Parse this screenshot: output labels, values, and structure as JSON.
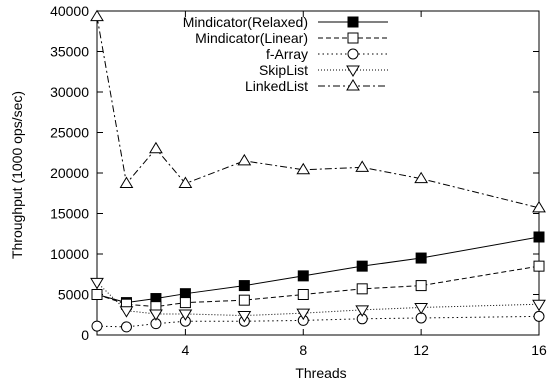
{
  "chart_data": {
    "type": "line",
    "title": "",
    "xlabel": "Threads",
    "ylabel": "Throughput (1000 ops/sec)",
    "xlim": [
      1,
      16
    ],
    "ylim": [
      0,
      40000
    ],
    "xticks": [
      4,
      8,
      12,
      16
    ],
    "yticks": [
      0,
      5000,
      10000,
      15000,
      20000,
      25000,
      30000,
      35000,
      40000
    ],
    "grid": false,
    "legend_position": "top-right",
    "series": [
      {
        "name": "Mindicator(Relaxed)",
        "marker": "filled-square",
        "line_style": "solid",
        "color": "#000000",
        "x": [
          1,
          2,
          3,
          4,
          6,
          8,
          10,
          12,
          16
        ],
        "y": [
          5000,
          4000,
          4500,
          5100,
          6100,
          7300,
          8500,
          9500,
          12100
        ]
      },
      {
        "name": "Mindicator(Linear)",
        "marker": "open-square",
        "line_style": "dashed",
        "color": "#000000",
        "x": [
          1,
          2,
          3,
          4,
          6,
          8,
          10,
          12,
          16
        ],
        "y": [
          5000,
          3800,
          3500,
          4000,
          4300,
          5000,
          5700,
          6100,
          8500
        ]
      },
      {
        "name": "f-Array",
        "marker": "open-circle",
        "line_style": "dotted",
        "color": "#000000",
        "x": [
          1,
          2,
          3,
          4,
          6,
          8,
          10,
          12,
          16
        ],
        "y": [
          1100,
          1000,
          1400,
          1700,
          1700,
          1800,
          2000,
          2100,
          2300
        ]
      },
      {
        "name": "SkipList",
        "marker": "open-triangle-down",
        "line_style": "dotted-fine",
        "color": "#000000",
        "x": [
          1,
          2,
          3,
          4,
          6,
          8,
          10,
          12,
          16
        ],
        "y": [
          6500,
          3000,
          2600,
          2600,
          2400,
          2700,
          3100,
          3400,
          3800
        ]
      },
      {
        "name": "LinkedList",
        "marker": "open-triangle-up",
        "line_style": "dash-dot",
        "color": "#000000",
        "x": [
          1,
          2,
          3,
          4,
          6,
          8,
          10,
          12,
          16
        ],
        "y": [
          39300,
          18700,
          23000,
          18700,
          21500,
          20400,
          20700,
          19300,
          15700
        ]
      }
    ]
  }
}
